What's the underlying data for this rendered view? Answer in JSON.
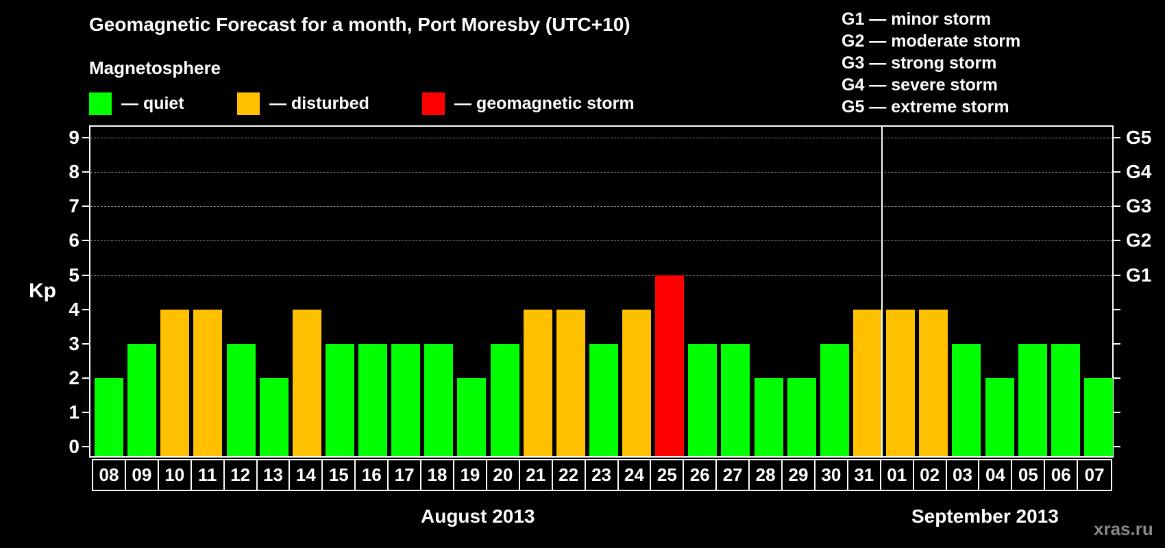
{
  "header": {
    "title": "Geomagnetic Forecast for a month, Port Moresby (UTC+10)",
    "subtitle": "Magnetosphere"
  },
  "legend": [
    {
      "label": "— quiet",
      "color": "#00ff00"
    },
    {
      "label": "— disturbed",
      "color": "#ffc000"
    },
    {
      "label": "— geomagnetic storm",
      "color": "#ff0000"
    }
  ],
  "g_legend": [
    "G1 — minor storm",
    "G2 — moderate storm",
    "G3 — strong storm",
    "G4 — severe storm",
    "G5 — extreme storm"
  ],
  "axis": {
    "ylabel": "Kp",
    "yticks": [
      "0",
      "1",
      "2",
      "3",
      "4",
      "5",
      "6",
      "7",
      "8",
      "9"
    ],
    "gticks": [
      {
        "kp": 5,
        "label": "G1"
      },
      {
        "kp": 6,
        "label": "G2"
      },
      {
        "kp": 7,
        "label": "G3"
      },
      {
        "kp": 8,
        "label": "G4"
      },
      {
        "kp": 9,
        "label": "G5"
      }
    ]
  },
  "months": [
    {
      "label": "August 2013"
    },
    {
      "label": "September 2013"
    }
  ],
  "watermark": "xras.ru",
  "colors": {
    "quiet": "#00ff00",
    "disturbed": "#ffc000",
    "storm": "#ff0000",
    "background": "#000000",
    "grid": "#888888"
  },
  "chart_data": {
    "type": "bar",
    "title": "Geomagnetic Forecast for a month, Port Moresby (UTC+10)",
    "xlabel": "August 2013 / September 2013",
    "ylabel": "Kp",
    "ylim": [
      0,
      9
    ],
    "grid": "dashed horizontal lines at Kp 5-9 (G1-G5)",
    "categories": [
      "08",
      "09",
      "10",
      "11",
      "12",
      "13",
      "14",
      "15",
      "16",
      "17",
      "18",
      "19",
      "20",
      "21",
      "22",
      "23",
      "24",
      "25",
      "26",
      "27",
      "28",
      "29",
      "30",
      "31",
      "01",
      "02",
      "03",
      "04",
      "05",
      "06",
      "07"
    ],
    "values": [
      2,
      3,
      4,
      4,
      3,
      2,
      4,
      3,
      3,
      3,
      3,
      2,
      3,
      4,
      4,
      3,
      4,
      5,
      3,
      3,
      2,
      2,
      3,
      4,
      4,
      4,
      3,
      2,
      3,
      3,
      2
    ],
    "status": [
      "quiet",
      "quiet",
      "disturbed",
      "disturbed",
      "quiet",
      "quiet",
      "disturbed",
      "quiet",
      "quiet",
      "quiet",
      "quiet",
      "quiet",
      "quiet",
      "disturbed",
      "disturbed",
      "quiet",
      "disturbed",
      "storm",
      "quiet",
      "quiet",
      "quiet",
      "quiet",
      "quiet",
      "disturbed",
      "disturbed",
      "disturbed",
      "quiet",
      "quiet",
      "quiet",
      "quiet",
      "quiet"
    ],
    "secondary_y_labels": {
      "5": "G1",
      "6": "G2",
      "7": "G3",
      "8": "G4",
      "9": "G5"
    },
    "legend": [
      "quiet",
      "disturbed",
      "geomagnetic storm"
    ]
  }
}
